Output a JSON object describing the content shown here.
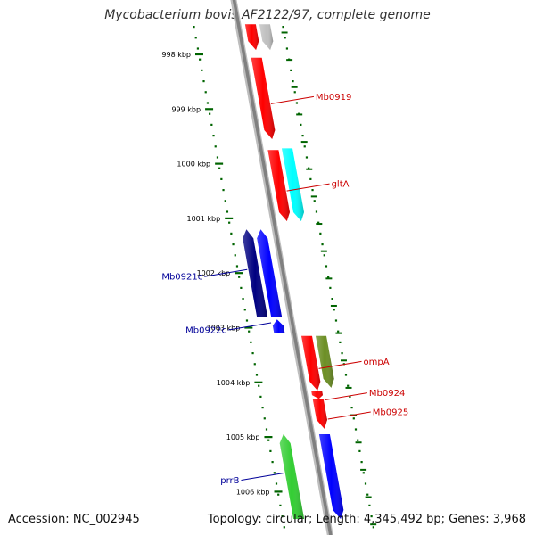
{
  "title": "Mycobacterium bovis AF2122/97, complete genome",
  "footer": {
    "accession": "Accession: NC_002945",
    "summary": "Topology: circular; Length: 4,345,492 bp; Genes: 3,968"
  },
  "ticks": [
    {
      "label": "998 kbp",
      "kbp": 998
    },
    {
      "label": "999 kbp",
      "kbp": 999
    },
    {
      "label": "1000 kbp",
      "kbp": 1000
    },
    {
      "label": "1001 kbp",
      "kbp": 1001
    },
    {
      "label": "1002 kbp",
      "kbp": 1002
    },
    {
      "label": "1003 kbp",
      "kbp": 1003
    },
    {
      "label": "1004 kbp",
      "kbp": 1004
    },
    {
      "label": "1005 kbp",
      "kbp": 1005
    },
    {
      "label": "1006 kbp",
      "kbp": 1006
    }
  ],
  "genes": [
    {
      "name": "",
      "strand": "forward",
      "start_kbp": 997.45,
      "end_kbp": 997.92,
      "color": "#ff0000"
    },
    {
      "name": "",
      "strand": "forward",
      "start_kbp": 997.45,
      "end_kbp": 997.92,
      "color": "#c0c0c0",
      "lane": "outer"
    },
    {
      "name": "Mb0919",
      "strand": "forward",
      "start_kbp": 998.06,
      "end_kbp": 999.55,
      "color": "#ff0000"
    },
    {
      "name": "gltA",
      "strand": "forward",
      "start_kbp": 999.75,
      "end_kbp": 1001.05,
      "color": "#ff0000"
    },
    {
      "name": "",
      "strand": "forward",
      "start_kbp": 999.72,
      "end_kbp": 1001.05,
      "color": "#00ffff",
      "lane": "outer"
    },
    {
      "name": "Mb0921c",
      "strand": "reverse",
      "start_kbp": 1001.2,
      "end_kbp": 1002.8,
      "color": "#000080",
      "lane": "outer"
    },
    {
      "name": "",
      "strand": "reverse",
      "start_kbp": 1001.2,
      "end_kbp": 1002.8,
      "color": "#0000ff"
    },
    {
      "name": "Mb0922c",
      "strand": "reverse",
      "start_kbp": 1002.85,
      "end_kbp": 1003.1,
      "color": "#0000ff"
    },
    {
      "name": "ompA",
      "strand": "forward",
      "start_kbp": 1003.15,
      "end_kbp": 1004.15,
      "color": "#ff0000"
    },
    {
      "name": "",
      "strand": "forward",
      "start_kbp": 1003.15,
      "end_kbp": 1004.1,
      "color": "#6b8e23",
      "lane": "outer"
    },
    {
      "name": "Mb0924",
      "strand": "forward",
      "start_kbp": 1004.15,
      "end_kbp": 1004.3,
      "color": "#ff0000"
    },
    {
      "name": "Mb0925",
      "strand": "forward",
      "start_kbp": 1004.3,
      "end_kbp": 1004.85,
      "color": "#ff0000"
    },
    {
      "name": "prrB",
      "strand": "reverse",
      "start_kbp": 1004.95,
      "end_kbp": 1006.5,
      "color": "#32cd32",
      "lane": "outer"
    },
    {
      "name": "",
      "strand": "forward",
      "start_kbp": 1004.95,
      "end_kbp": 1006.5,
      "color": "#0000ff"
    }
  ],
  "colors": {
    "backbone": "#808080",
    "ticks": "#006400",
    "forward_label": "#cc0000",
    "reverse_label": "#000099"
  }
}
